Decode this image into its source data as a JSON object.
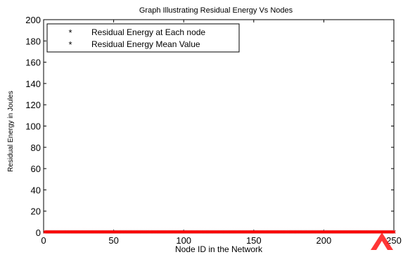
{
  "chart_data": {
    "type": "scatter",
    "title": "Graph Illustrating Residual Energy Vs Nodes",
    "xlabel": "Node ID in the Network",
    "ylabel": "Residual Energy in Joules",
    "xlim": [
      0,
      250
    ],
    "ylim": [
      0,
      200
    ],
    "xticks": [
      0,
      50,
      100,
      150,
      200,
      250
    ],
    "yticks": [
      0,
      20,
      40,
      60,
      80,
      100,
      120,
      140,
      160,
      180,
      200
    ],
    "grid": false,
    "legend_position": "top-left",
    "node_count": 250,
    "series": [
      {
        "name": "Residual Energy at Each node",
        "marker": "*",
        "color": "#000000",
        "x_range": [
          1,
          250
        ],
        "y_constant": 0.5
      },
      {
        "name": "Residual Energy Mean Value",
        "marker": "*",
        "color": "#ff0000",
        "x_range": [
          1,
          250
        ],
        "y_constant": 0.5
      }
    ]
  },
  "watermark_color": "#ff2020"
}
